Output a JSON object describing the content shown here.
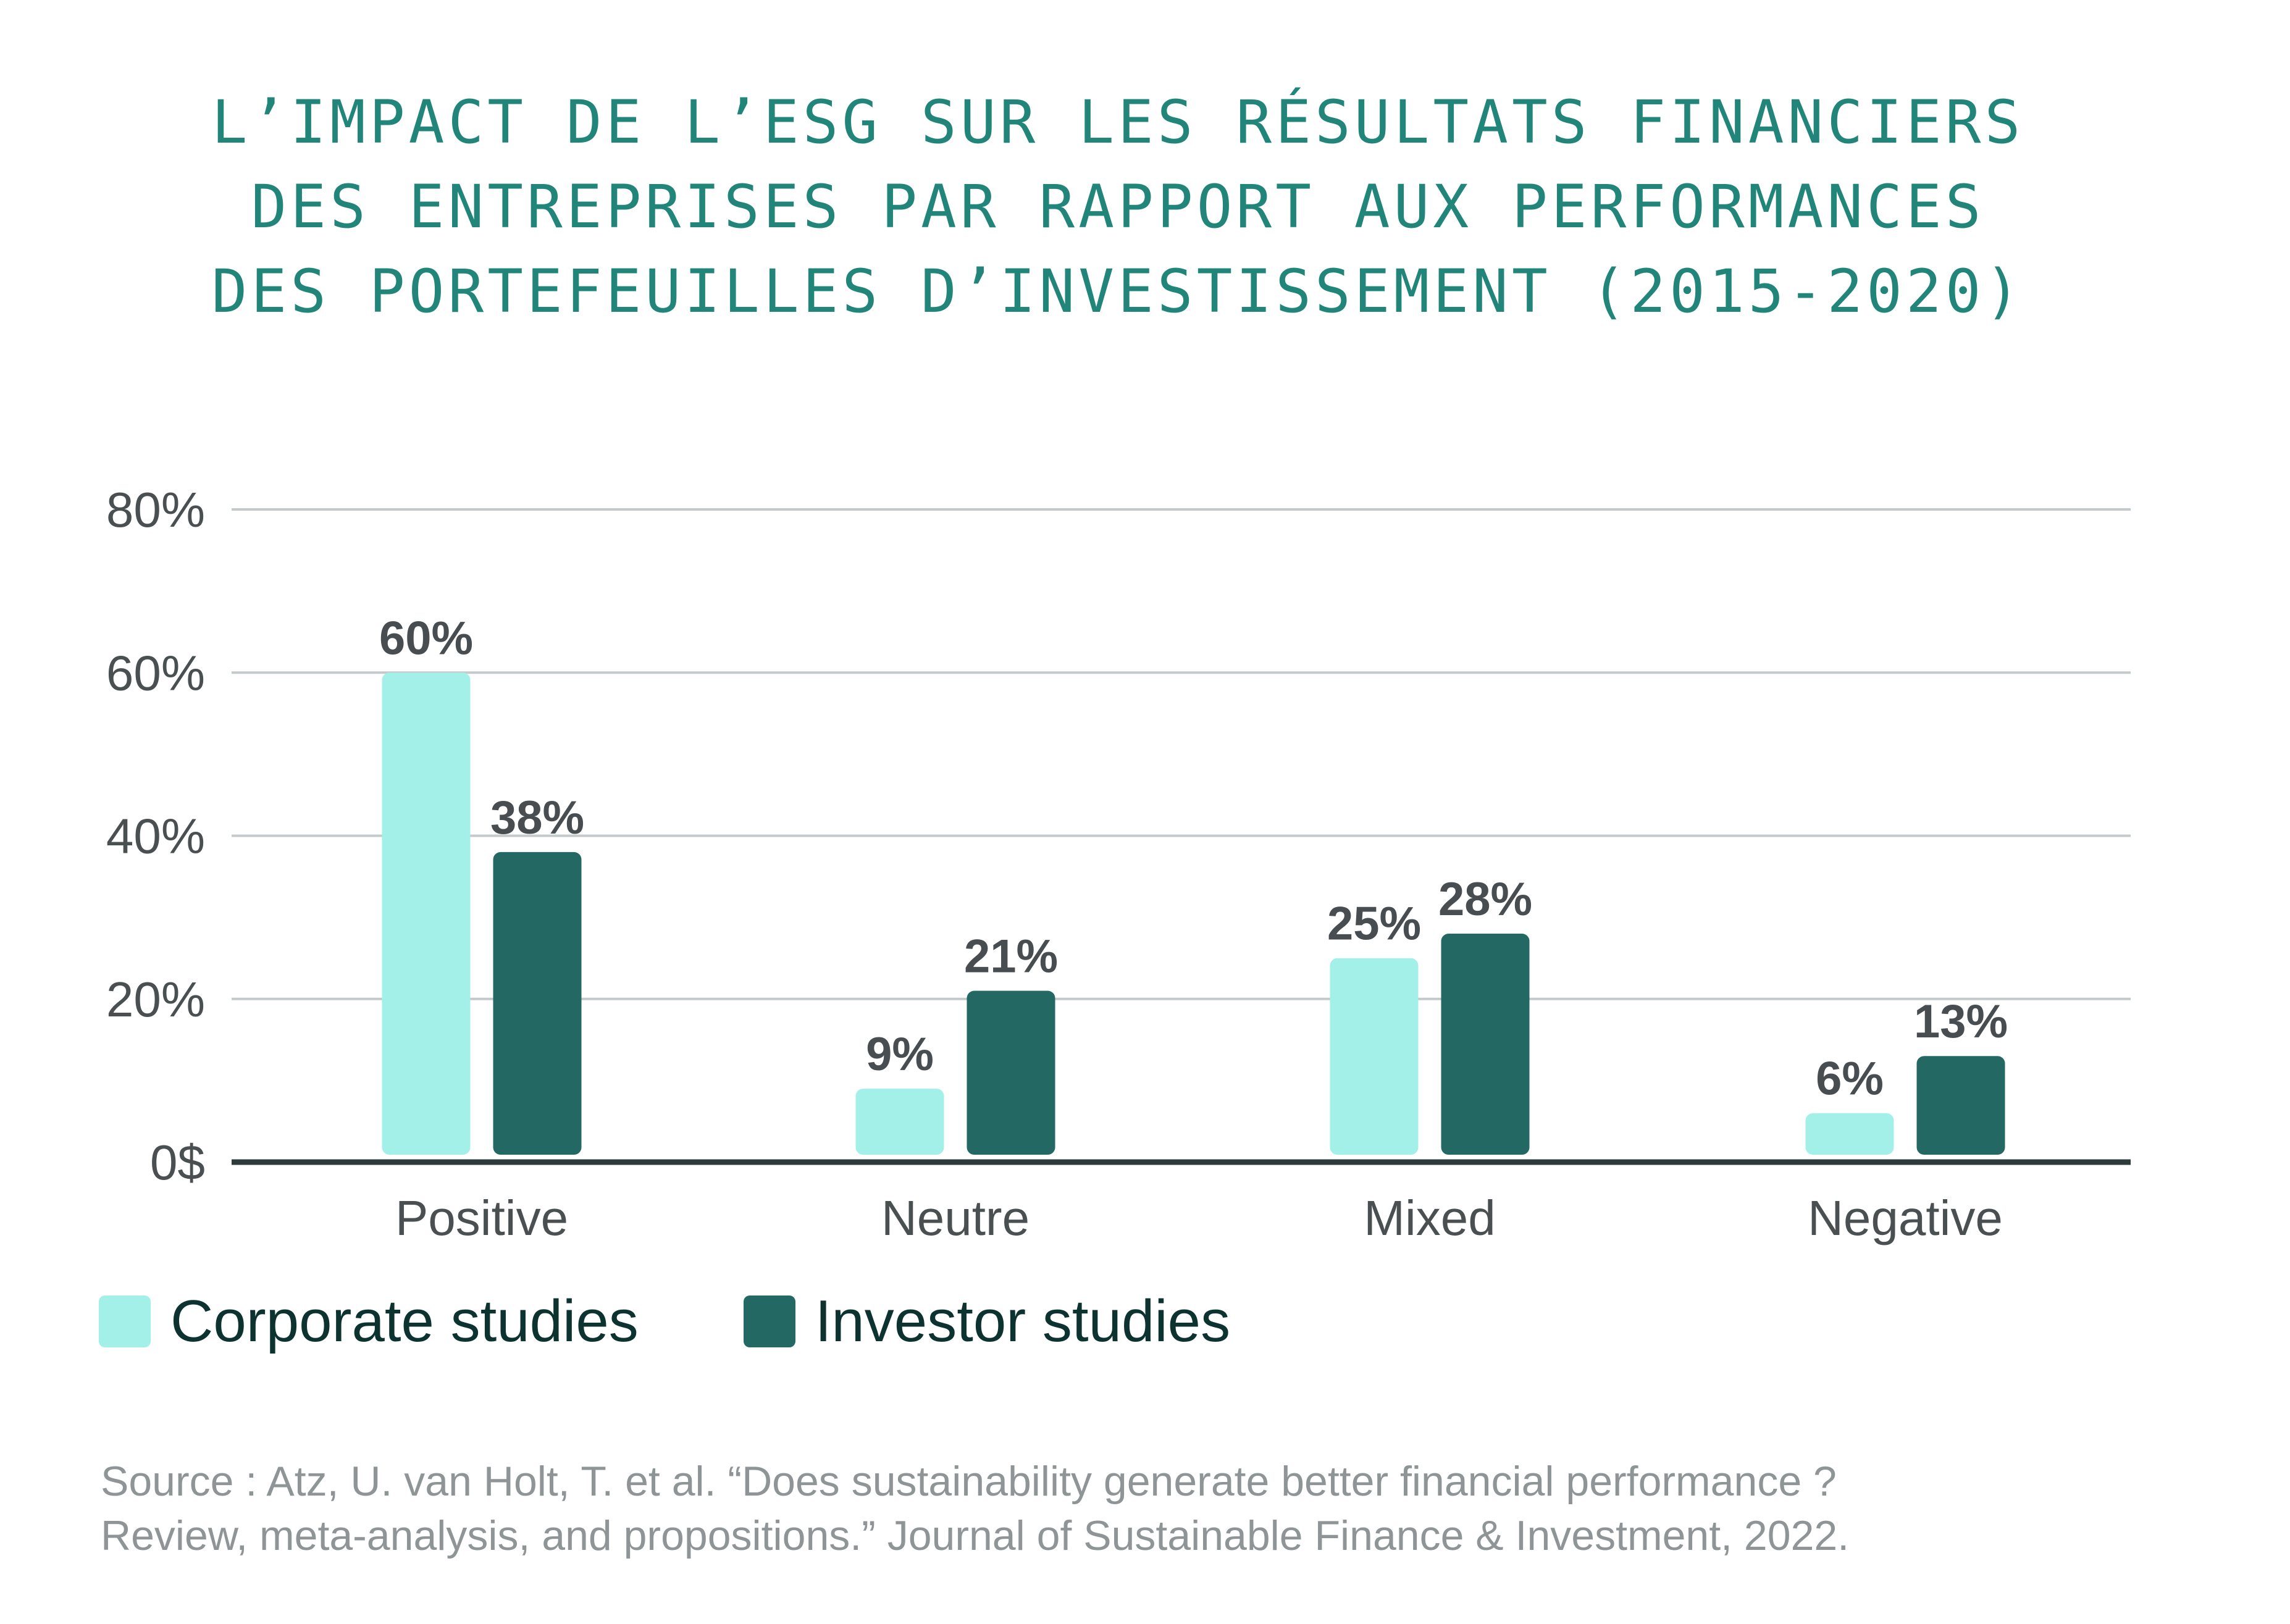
{
  "title_lines": [
    "L’IMPACT DE L’ESG SUR LES RÉSULTATS FINANCIERS",
    "DES ENTREPRISES PAR RAPPORT AUX PERFORMANCES",
    "DES PORTEFEUILLES D’INVESTISSEMENT (2015-2020)"
  ],
  "chart_data": {
    "type": "bar",
    "categories": [
      "Positive",
      "Neutre",
      "Mixed",
      "Negative"
    ],
    "series": [
      {
        "name": "Corporate studies",
        "values": [
          60,
          9,
          25,
          6
        ],
        "labels": [
          "60%",
          "9%",
          "25%",
          "6%"
        ],
        "color": "#a3f0e8"
      },
      {
        "name": "Investor studies",
        "values": [
          38,
          21,
          28,
          13
        ],
        "labels": [
          "38%",
          "21%",
          "28%",
          "13%"
        ],
        "color": "#246863"
      }
    ],
    "ylim": [
      0,
      80
    ],
    "yticks": [
      0,
      20,
      40,
      60,
      80
    ],
    "ytick_labels": [
      "0$",
      "20%",
      "40%",
      "60%",
      "80%"
    ],
    "grid": true,
    "legend_position": "bottom-left"
  },
  "colors": {
    "title": "#22857a",
    "axis_text": "#4a4f52",
    "data_label": "#474d50",
    "grid": "#c4cacb",
    "baseline": "#2d3b3b"
  },
  "source_lines": [
    "Source :  Atz, U. van Holt, T. et al. “Does sustainability generate better financial performance ?",
    "Review, meta-analysis, and propositions.” Journal of Sustainable Finance & Investment, 2022."
  ]
}
